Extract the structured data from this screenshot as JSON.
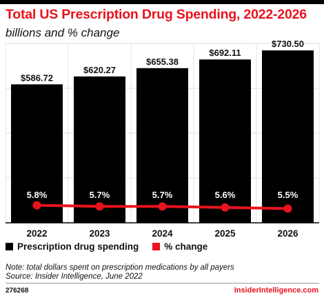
{
  "header": {
    "title": "Total US Prescription Drug Spending, 2022-2026",
    "subtitle": "billions and % change"
  },
  "legend": {
    "items": [
      {
        "label": "Prescription drug spending",
        "color": "#000000"
      },
      {
        "label": "% change",
        "color": "#e8131d"
      }
    ]
  },
  "footer": {
    "note": "Note: total dollars spent on prescription medications by all payers",
    "source": "Source: Insider Intelligence, June 2022",
    "chart_id": "276268",
    "brand": "InsiderIntelligence.com"
  },
  "chart_data": {
    "type": "bar",
    "title": "Total US Prescription Drug Spending, 2022-2026",
    "subtitle": "billions and % change",
    "categories": [
      "2022",
      "2023",
      "2024",
      "2025",
      "2026"
    ],
    "ylim": [
      0,
      760
    ],
    "grid": true,
    "legend_position": "bottom-left",
    "series": [
      {
        "name": "Prescription drug spending",
        "kind": "bar",
        "color": "#000000",
        "values": [
          586.72,
          620.27,
          655.38,
          692.11,
          730.5
        ],
        "labels": [
          "$586.72",
          "$620.27",
          "$655.38",
          "$692.11",
          "$730.50"
        ]
      },
      {
        "name": "% change",
        "kind": "line",
        "color": "#e8131d",
        "values": [
          5.8,
          5.7,
          5.7,
          5.6,
          5.5
        ],
        "labels": [
          "5.8%",
          "5.7%",
          "5.7%",
          "5.6%",
          "5.5%"
        ]
      }
    ]
  }
}
